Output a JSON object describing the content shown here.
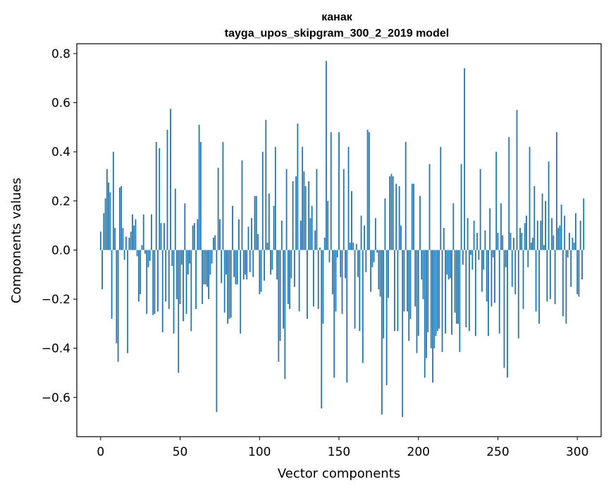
{
  "chart_data": {
    "type": "bar",
    "title_line1": "канак",
    "title_line2": "tayga_upos_skipgram_300_2_2019 model",
    "xlabel": "Vector components",
    "ylabel": "Components values",
    "xlim": [
      -15,
      315
    ],
    "ylim": [
      -0.76,
      0.84
    ],
    "xticks": [
      0,
      50,
      100,
      150,
      200,
      250,
      300
    ],
    "yticks": [
      0.8,
      0.6,
      0.4,
      0.2,
      0.0,
      -0.2,
      -0.4,
      -0.6
    ],
    "ytick_labels": [
      "0.8",
      "0.6",
      "0.4",
      "0.2",
      "0.0",
      "−0.2",
      "−0.4",
      "−0.6"
    ],
    "bar_color": "#1f77b4",
    "values": [
      0.075,
      -0.16,
      0.15,
      0.21,
      0.33,
      0.275,
      0.235,
      -0.28,
      0.4,
      0.09,
      -0.38,
      -0.455,
      0.255,
      0.26,
      0.09,
      -0.04,
      0.055,
      -0.42,
      0.05,
      0.075,
      0.145,
      0.1,
      0.125,
      -0.025,
      -0.21,
      -0.18,
      0.02,
      0.145,
      -0.015,
      -0.26,
      -0.07,
      -0.045,
      0.145,
      -0.265,
      -0.26,
      0.44,
      -0.25,
      0.415,
      0.11,
      -0.335,
      0.11,
      -0.21,
      0.49,
      -0.24,
      0.575,
      -0.065,
      -0.34,
      0.25,
      -0.2,
      -0.5,
      -0.22,
      -0.06,
      -0.29,
      0.19,
      -0.26,
      -0.1,
      -0.055,
      -0.33,
      0.1,
      0.11,
      -0.24,
      0.125,
      0.51,
      0.44,
      -0.22,
      -0.14,
      -0.14,
      -0.15,
      -0.2,
      -0.1,
      -0.055,
      0.05,
      0.06,
      -0.66,
      0.335,
      0.125,
      -0.135,
      0.44,
      -0.255,
      -0.1,
      -0.3,
      -0.28,
      -0.275,
      0.18,
      -0.11,
      -0.14,
      -0.14,
      0.125,
      -0.34,
      0.365,
      -0.12,
      -0.1,
      -0.12,
      0.095,
      -0.09,
      0.13,
      -0.11,
      0.22,
      0.22,
      0.065,
      -0.18,
      -0.17,
      0.4,
      -0.125,
      0.53,
      0.03,
      0.23,
      -0.1,
      -0.08,
      0.18,
      0.42,
      -0.12,
      -0.455,
      -0.37,
      0.12,
      -0.32,
      -0.525,
      0.33,
      -0.22,
      -0.24,
      -0.115,
      0.28,
      -0.15,
      0.3,
      0.515,
      -0.25,
      0.12,
      0.42,
      0.32,
      0.26,
      -0.28,
      0.28,
      0.13,
      0.18,
      -0.23,
      0.08,
      0.33,
      -0.24,
      0.01,
      -0.645,
      -0.3,
      0.05,
      0.77,
      0.2,
      -0.05,
      0.48,
      -0.18,
      -0.52,
      -0.25,
      -0.03,
      0.48,
      -0.11,
      -0.26,
      0.33,
      -0.115,
      -0.54,
      0.42,
      0.03,
      0.24,
      0.03,
      -0.32,
      0.025,
      -0.11,
      -0.33,
      0.14,
      -0.46,
      0.1,
      -0.09,
      0.49,
      0.48,
      -0.17,
      -0.07,
      -0.05,
      0.13,
      -0.01,
      -0.16,
      -0.19,
      -0.67,
      -0.36,
      0.21,
      -0.55,
      -0.195,
      0.3,
      0.31,
      0.3,
      -0.33,
      0.27,
      -0.33,
      0.26,
      0.1,
      -0.68,
      -0.25,
      0.44,
      -0.25,
      -0.37,
      -0.28,
      0.27,
      0.27,
      -0.23,
      -0.42,
      -0.35,
      0.22,
      -0.12,
      -0.2,
      -0.52,
      -0.44,
      -0.335,
      0.35,
      -0.4,
      -0.54,
      -0.4,
      -0.35,
      -0.33,
      -0.32,
      0.42,
      -0.415,
      0.09,
      -0.34,
      -0.1,
      -0.12,
      -0.115,
      -0.345,
      0.19,
      -0.255,
      -0.3,
      -0.3,
      -0.415,
      0.35,
      -0.06,
      0.74,
      -0.315,
      0.13,
      -0.33,
      -0.02,
      -0.08,
      0.12,
      -0.35,
      0.07,
      -0.04,
      0.33,
      -0.17,
      -0.08,
      0.08,
      -0.21,
      -0.35,
      0.17,
      -0.23,
      -0.03,
      -0.215,
      0.4,
      0.07,
      -0.34,
      0.19,
      0.06,
      -0.48,
      -0.07,
      -0.52,
      0.46,
      0.07,
      -0.15,
      0.05,
      -0.18,
      0.57,
      -0.36,
      0.09,
      0.07,
      -0.24,
      0.11,
      0.14,
      -0.07,
      0.42,
      0.03,
      0.05,
      0.26,
      -0.25,
      0.12,
      -0.3,
      0.12,
      0.23,
      0.02,
      0.2,
      -0.21,
      0.36,
      -0.2,
      0.13,
      0.06,
      -0.22,
      0.48,
      0.09,
      0.1,
      0.185,
      -0.27,
      0.14,
      -0.3,
      -0.03,
      0.07,
      -0.15,
      0.05,
      0.03,
      0.15,
      -0.18,
      -0.19,
      0.12,
      -0.12,
      0.21
    ]
  }
}
